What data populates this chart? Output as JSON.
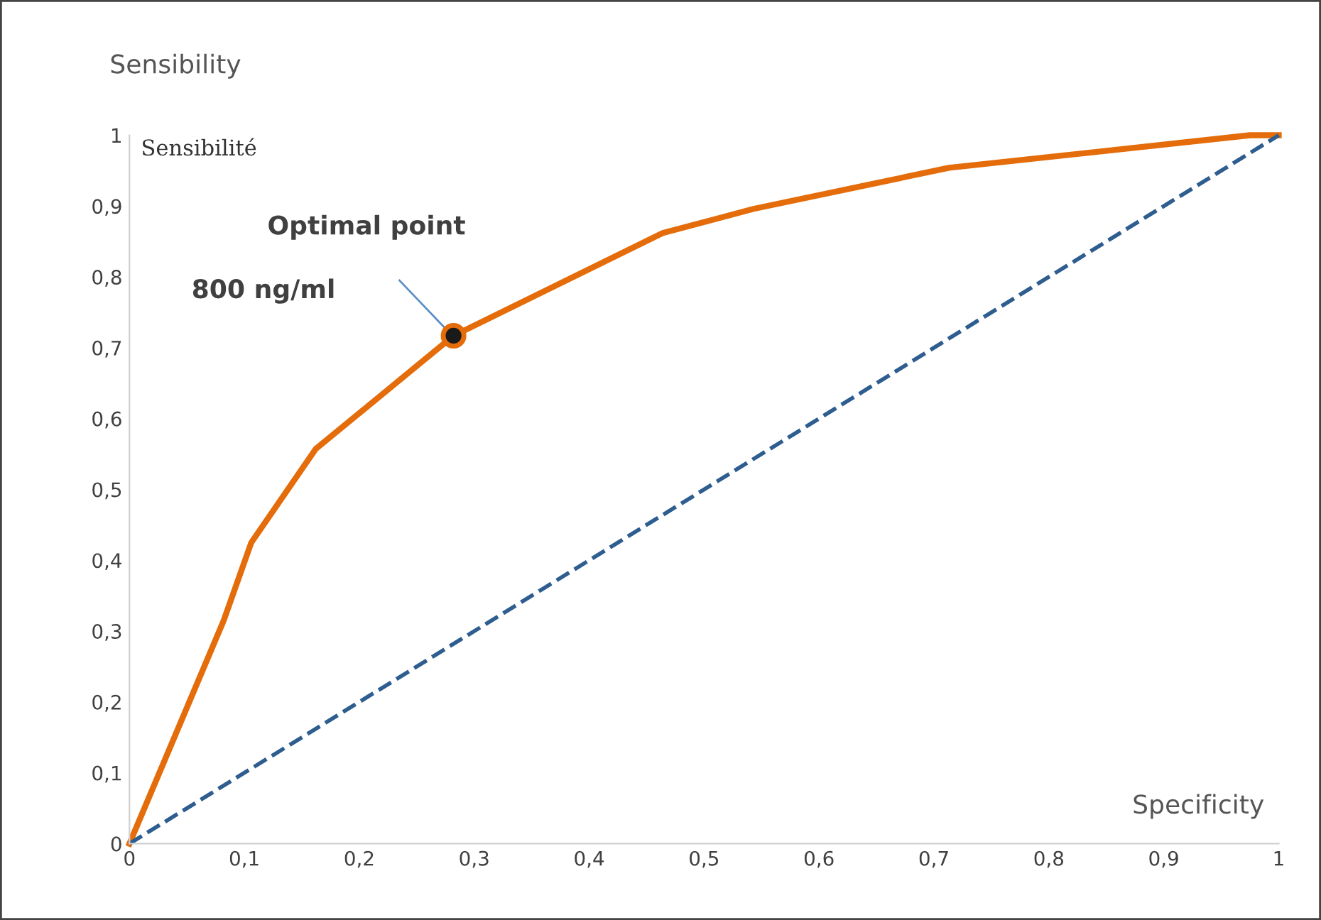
{
  "chart_data": {
    "type": "line",
    "ylabel": "Sensibility",
    "xlabel": "Specificity",
    "annotations": [
      "Sensibilité",
      "Optimal point",
      "800 ng/ml"
    ],
    "series": [
      {
        "color": "#e46c0a",
        "line_style": "solid",
        "marker": "none",
        "x": [
          0,
          0.082,
          0.106,
          0.162,
          0.282,
          0.464,
          0.543,
          0.713,
          0.975,
          1
        ],
        "values": [
          0,
          0.315,
          0.425,
          0.557,
          0.717,
          0.862,
          0.896,
          0.954,
          1.0,
          1.0
        ]
      },
      {
        "type": "line",
        "color": "#2e5d8f",
        "line_style": "dashed",
        "marker": "none",
        "x": [
          0,
          1
        ],
        "values": [
          0,
          1
        ]
      },
      {
        "type": "scatter",
        "color": "#e46c0a",
        "marker": "circle",
        "x": [
          0.282
        ],
        "values": [
          0.717
        ]
      }
    ],
    "xlim": [
      0,
      1
    ],
    "ylim": [
      0,
      1
    ],
    "xticks": [
      0,
      {
        "value": 0.1,
        "label": "0,1"
      },
      {
        "value": 0.2,
        "label": "0,2"
      },
      {
        "value": 0.3,
        "label": "0,3"
      },
      {
        "value": 0.4,
        "label": "0,4"
      },
      {
        "value": 0.5,
        "label": "0,5"
      },
      {
        "value": 0.6,
        "label": "0,6"
      },
      {
        "value": 0.7,
        "label": "0,7"
      },
      {
        "value": 0.8,
        "label": "0,8"
      },
      {
        "value": 0.9,
        "label": "0,9"
      },
      1
    ],
    "yticks": [
      0,
      {
        "value": 0.1,
        "label": "0,1"
      },
      {
        "value": 0.2,
        "label": "0,2"
      },
      {
        "value": 0.3,
        "label": "0,3"
      },
      {
        "value": 0.4,
        "label": "0,4"
      },
      {
        "value": 0.5,
        "label": "0,5"
      },
      {
        "value": 0.6,
        "label": "0,6"
      },
      {
        "value": 0.7,
        "label": "0,7"
      },
      {
        "value": 0.8,
        "label": "0,8"
      },
      {
        "value": 0.9,
        "label": "0,9"
      },
      1
    ],
    "grid": false
  }
}
